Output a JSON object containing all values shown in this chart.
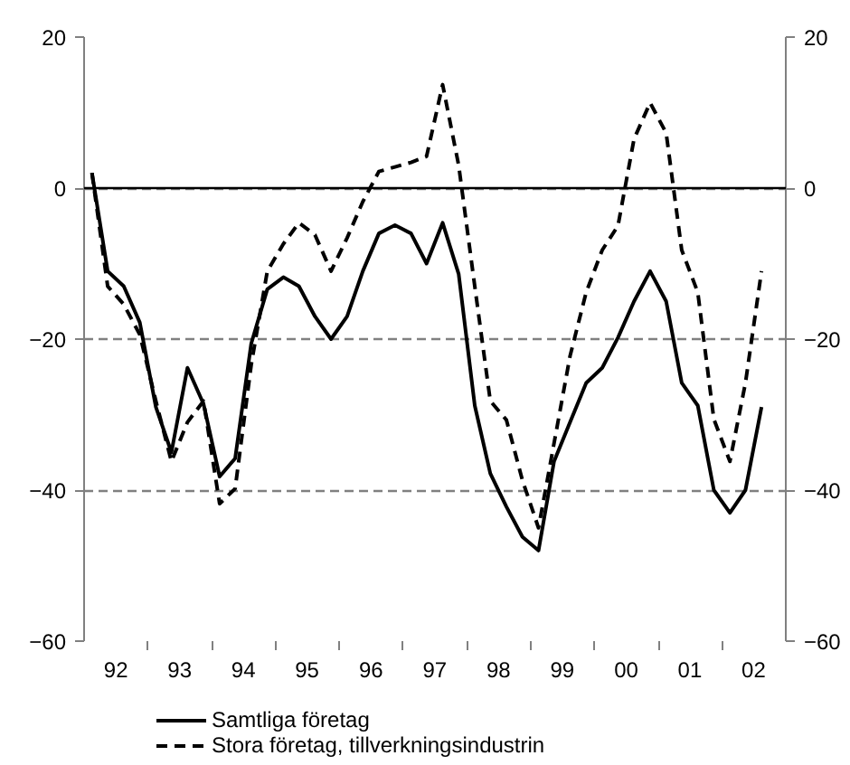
{
  "chart_data": {
    "type": "line",
    "x": [
      "1992-02-15",
      "1992-05-15",
      "1992-08-15",
      "1992-11-15",
      "1993-02-15",
      "1993-05-15",
      "1993-08-15",
      "1993-11-15",
      "1994-02-15",
      "1994-05-15",
      "1994-08-15",
      "1994-11-15",
      "1995-02-15",
      "1995-05-15",
      "1995-08-15",
      "1995-11-15",
      "1996-02-15",
      "1996-05-15",
      "1996-08-15",
      "1996-11-15",
      "1997-02-15",
      "1997-05-15",
      "1997-08-15",
      "1997-11-15",
      "1998-02-15",
      "1998-05-15",
      "1998-08-15",
      "1998-11-15",
      "1999-02-15",
      "1999-05-15",
      "1999-08-15",
      "1999-11-15",
      "2000-02-15",
      "2000-05-15",
      "2000-08-15",
      "2000-11-15",
      "2001-02-15",
      "2001-05-15",
      "2001-08-15",
      "2001-11-15",
      "2002-02-15",
      "2002-05-15",
      "2002-08-15"
    ],
    "series": [
      {
        "name": "Samtliga företag",
        "color": "#000000",
        "line_style": "solid",
        "values": [
          2,
          -11,
          -13,
          -17.8,
          -29,
          -35,
          -23.8,
          -28.6,
          -38.2,
          -35.8,
          -20.6,
          -13.4,
          -11.8,
          -13,
          -17,
          -20,
          -17,
          -11,
          -6,
          -4.9,
          -6,
          -10,
          -4.6,
          -11.4,
          -28.8,
          -37.8,
          -42.2,
          -46.2,
          -48,
          -36.2,
          -31,
          -25.8,
          -23.8,
          -19.8,
          -15,
          -11,
          -15,
          -25.8,
          -28.8,
          -40,
          -43,
          -40,
          -29
        ]
      },
      {
        "name": "Stora företag, tillverkningsindustrin",
        "color": "#000000",
        "line_style": "dashed",
        "values": [
          2,
          -13,
          -15.4,
          -19.4,
          -28.2,
          -36.2,
          -31,
          -28.2,
          -41.8,
          -39.8,
          -23.4,
          -11,
          -7.4,
          -4.6,
          -6.2,
          -11,
          -6.6,
          -1.8,
          2.2,
          2.8,
          3.4,
          4.2,
          13.7,
          3,
          -13,
          -28.2,
          -30.7,
          -38.7,
          -45,
          -33.8,
          -22.2,
          -13.8,
          -8.2,
          -5,
          6.5,
          11.3,
          7.3,
          -8.2,
          -13.8,
          -30.6,
          -36.2,
          -25.8,
          -11
        ]
      }
    ],
    "xlim": [
      "1992-01-01",
      "2003-01-01"
    ],
    "xticks": [
      {
        "value": "1992-07-01",
        "label": "92"
      },
      {
        "value": "1993-07-01",
        "label": "93"
      },
      {
        "value": "1994-07-01",
        "label": "94"
      },
      {
        "value": "1995-07-01",
        "label": "95"
      },
      {
        "value": "1996-07-01",
        "label": "96"
      },
      {
        "value": "1997-07-01",
        "label": "97"
      },
      {
        "value": "1998-07-01",
        "label": "98"
      },
      {
        "value": "1999-07-01",
        "label": "99"
      },
      {
        "value": "2000-07-01",
        "label": "00"
      },
      {
        "value": "2001-07-01",
        "label": "01"
      },
      {
        "value": "2002-07-01",
        "label": "02"
      },
      {
        "value": "1993-01-01",
        "label": null
      },
      {
        "value": "1994-01-01",
        "label": null
      },
      {
        "value": "1995-01-01",
        "label": null
      },
      {
        "value": "1996-01-01",
        "label": null
      },
      {
        "value": "1997-01-01",
        "label": null
      },
      {
        "value": "1998-01-01",
        "label": null
      },
      {
        "value": "1999-01-01",
        "label": null
      },
      {
        "value": "2000-01-01",
        "label": null
      },
      {
        "value": "2001-01-01",
        "label": null
      },
      {
        "value": "2002-01-01",
        "label": null
      }
    ],
    "ylim": [
      -60,
      20
    ],
    "yticks": [
      -60,
      -40,
      -20,
      0,
      20
    ],
    "y2lim": [
      -60,
      20
    ],
    "y2ticks": [
      -60,
      -40,
      -20,
      0,
      20
    ],
    "ref_lines": [
      {
        "axis": "y",
        "value": 0,
        "color": "#000000",
        "line_style": "solid"
      }
    ],
    "grid": "y",
    "legend": "bottom",
    "marker": "none"
  }
}
